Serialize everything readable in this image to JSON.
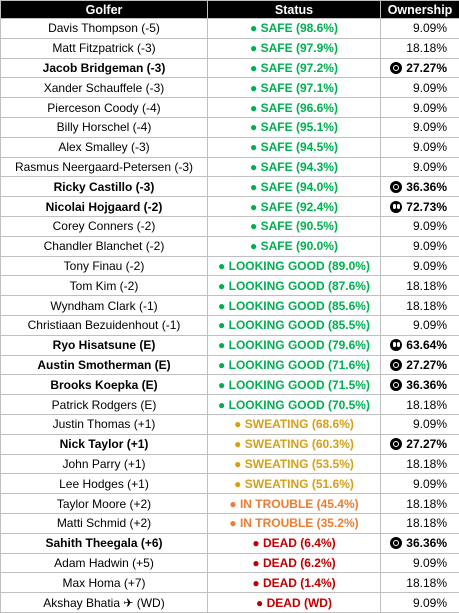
{
  "headers": [
    "Golfer",
    "Status",
    "Ownership"
  ],
  "rows": [
    {
      "golfer": "Davis Thompson (-5)",
      "bold": false,
      "dot": "●",
      "status": "SAFE (98.6%)",
      "tier": "safe",
      "own": "9.09%",
      "icon": ""
    },
    {
      "golfer": "Matt Fitzpatrick (-3)",
      "bold": false,
      "dot": "●",
      "status": "SAFE (97.9%)",
      "tier": "safe",
      "own": "18.18%",
      "icon": ""
    },
    {
      "golfer": "Jacob Bridgeman (-3)",
      "bold": true,
      "dot": "●",
      "status": "SAFE (97.2%)",
      "tier": "safe",
      "own": "27.27%",
      "icon": "target"
    },
    {
      "golfer": "Xander Schauffele (-3)",
      "bold": false,
      "dot": "●",
      "status": "SAFE (97.1%)",
      "tier": "safe",
      "own": "9.09%",
      "icon": ""
    },
    {
      "golfer": "Pierceson Coody (-4)",
      "bold": false,
      "dot": "●",
      "status": "SAFE (96.6%)",
      "tier": "safe",
      "own": "9.09%",
      "icon": ""
    },
    {
      "golfer": "Billy Horschel (-4)",
      "bold": false,
      "dot": "●",
      "status": "SAFE (95.1%)",
      "tier": "safe",
      "own": "9.09%",
      "icon": ""
    },
    {
      "golfer": "Alex Smalley (-3)",
      "bold": false,
      "dot": "●",
      "status": "SAFE (94.5%)",
      "tier": "safe",
      "own": "9.09%",
      "icon": ""
    },
    {
      "golfer": "Rasmus Neergaard-Petersen (-3)",
      "bold": false,
      "dot": "●",
      "status": "SAFE (94.3%)",
      "tier": "safe",
      "own": "9.09%",
      "icon": ""
    },
    {
      "golfer": "Ricky Castillo (-3)",
      "bold": true,
      "dot": "●",
      "status": "SAFE (94.0%)",
      "tier": "safe",
      "own": "36.36%",
      "icon": "target"
    },
    {
      "golfer": "Nicolai Hojgaard (-2)",
      "bold": true,
      "dot": "●",
      "status": "SAFE (92.4%)",
      "tier": "safe",
      "own": "72.73%",
      "icon": "eyes"
    },
    {
      "golfer": "Corey Conners (-2)",
      "bold": false,
      "dot": "●",
      "status": "SAFE (90.5%)",
      "tier": "safe",
      "own": "9.09%",
      "icon": ""
    },
    {
      "golfer": "Chandler Blanchet (-2)",
      "bold": false,
      "dot": "●",
      "status": "SAFE (90.0%)",
      "tier": "safe",
      "own": "9.09%",
      "icon": ""
    },
    {
      "golfer": "Tony Finau (-2)",
      "bold": false,
      "dot": "●",
      "status": "LOOKING GOOD (89.0%)",
      "tier": "good",
      "own": "9.09%",
      "icon": ""
    },
    {
      "golfer": "Tom Kim (-2)",
      "bold": false,
      "dot": "●",
      "status": "LOOKING GOOD (87.6%)",
      "tier": "good",
      "own": "18.18%",
      "icon": ""
    },
    {
      "golfer": "Wyndham Clark (-1)",
      "bold": false,
      "dot": "●",
      "status": "LOOKING GOOD (85.6%)",
      "tier": "good",
      "own": "18.18%",
      "icon": ""
    },
    {
      "golfer": "Christiaan Bezuidenhout (-1)",
      "bold": false,
      "dot": "●",
      "status": "LOOKING GOOD (85.5%)",
      "tier": "good",
      "own": "9.09%",
      "icon": ""
    },
    {
      "golfer": "Ryo Hisatsune (E)",
      "bold": true,
      "dot": "●",
      "status": "LOOKING GOOD (79.6%)",
      "tier": "good",
      "own": "63.64%",
      "icon": "eyes"
    },
    {
      "golfer": "Austin Smotherman (E)",
      "bold": true,
      "dot": "●",
      "status": "LOOKING GOOD (71.6%)",
      "tier": "good",
      "own": "27.27%",
      "icon": "target"
    },
    {
      "golfer": "Brooks Koepka (E)",
      "bold": true,
      "dot": "●",
      "status": "LOOKING GOOD (71.5%)",
      "tier": "good",
      "own": "36.36%",
      "icon": "target"
    },
    {
      "golfer": "Patrick Rodgers (E)",
      "bold": false,
      "dot": "●",
      "status": "LOOKING GOOD (70.5%)",
      "tier": "good",
      "own": "18.18%",
      "icon": ""
    },
    {
      "golfer": "Justin Thomas (+1)",
      "bold": false,
      "dot": "●",
      "status": "SWEATING (68.6%)",
      "tier": "sweat",
      "own": "9.09%",
      "icon": ""
    },
    {
      "golfer": "Nick Taylor (+1)",
      "bold": true,
      "dot": "●",
      "status": "SWEATING (60.3%)",
      "tier": "sweat",
      "own": "27.27%",
      "icon": "target"
    },
    {
      "golfer": "John Parry (+1)",
      "bold": false,
      "dot": "●",
      "status": "SWEATING (53.5%)",
      "tier": "sweat",
      "own": "18.18%",
      "icon": ""
    },
    {
      "golfer": "Lee Hodges (+1)",
      "bold": false,
      "dot": "●",
      "status": "SWEATING (51.6%)",
      "tier": "sweat",
      "own": "9.09%",
      "icon": ""
    },
    {
      "golfer": "Taylor Moore (+2)",
      "bold": false,
      "dot": "●",
      "status": "IN TROUBLE (45.4%)",
      "tier": "trouble",
      "own": "18.18%",
      "icon": ""
    },
    {
      "golfer": "Matti Schmid (+2)",
      "bold": false,
      "dot": "●",
      "status": "IN TROUBLE (35.2%)",
      "tier": "trouble",
      "own": "18.18%",
      "icon": ""
    },
    {
      "golfer": "Sahith Theegala (+6)",
      "bold": true,
      "dot": "●",
      "status": "DEAD (6.4%)",
      "tier": "dead",
      "own": "36.36%",
      "icon": "target"
    },
    {
      "golfer": "Adam Hadwin (+5)",
      "bold": false,
      "dot": "●",
      "status": "DEAD (6.2%)",
      "tier": "dead",
      "own": "9.09%",
      "icon": ""
    },
    {
      "golfer": "Max Homa (+7)",
      "bold": false,
      "dot": "●",
      "status": "DEAD (1.4%)",
      "tier": "dead",
      "own": "18.18%",
      "icon": ""
    },
    {
      "golfer": "Akshay Bhatia ✈ (WD)",
      "bold": false,
      "dot": "●",
      "status": "DEAD (WD)",
      "tier": "dead",
      "own": "9.09%",
      "icon": ""
    }
  ]
}
